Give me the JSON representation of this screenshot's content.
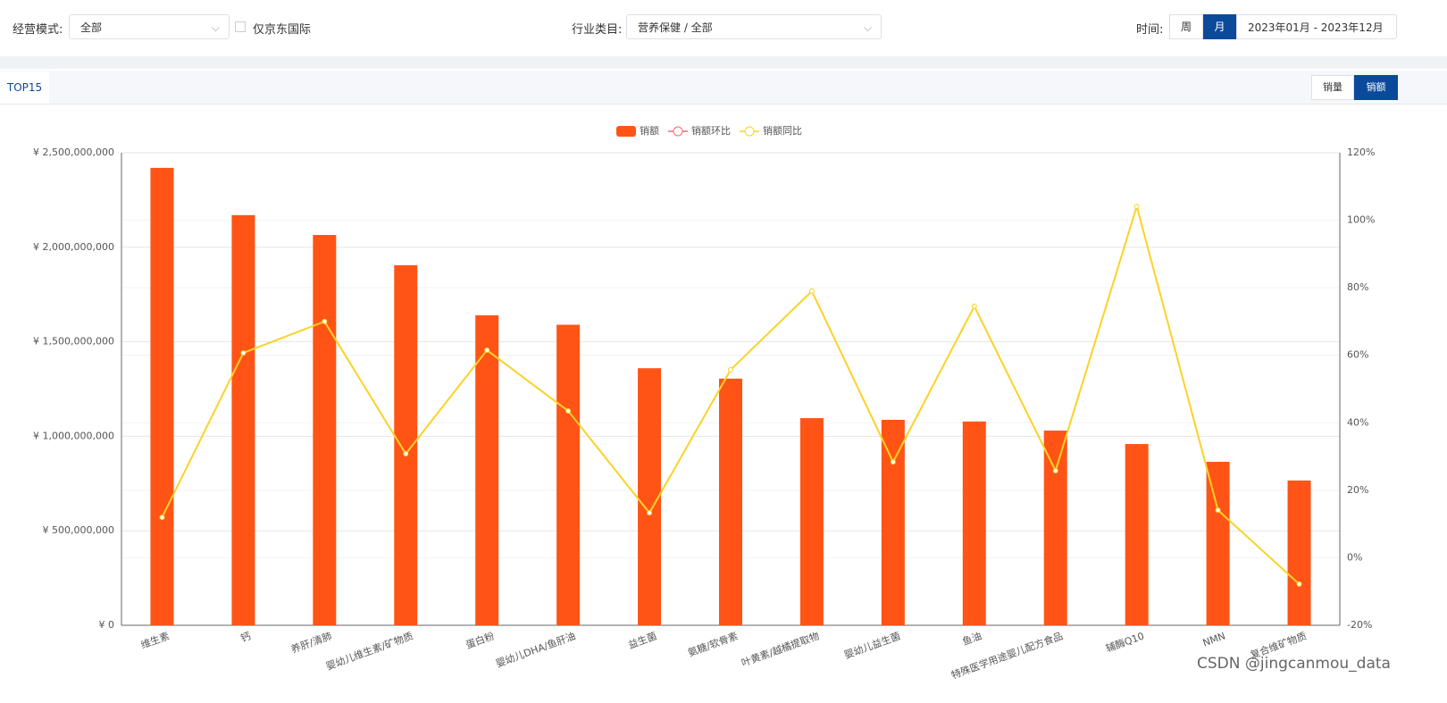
{
  "filters": {
    "mode_label": "经营模式:",
    "mode_value": "全部",
    "jd_intl": "仅京东国际",
    "category_label": "行业类目:",
    "category_value": "营养保健 / 全部",
    "time_label": "时间:",
    "week": "周",
    "month": "月",
    "range": "2023年01月 - 2023年12月"
  },
  "tabs": {
    "top": "TOP15",
    "volume": "销量",
    "amount": "销额"
  },
  "watermark": "CSDN @jingcanmou_data",
  "chart_data": {
    "type": "bar_line",
    "categories": [
      "维生素",
      "钙",
      "养肝/清肺",
      "婴幼儿维生素/矿物质",
      "蛋白粉",
      "婴幼儿DHA/鱼肝油",
      "益生菌",
      "氨糖/软骨素",
      "叶黄素/越橘提取物",
      "婴幼儿益生菌",
      "鱼油",
      "特殊医学用途婴儿配方食品",
      "辅酶Q10",
      "NMN",
      "复合维矿物质"
    ],
    "series": [
      {
        "name": "销额",
        "type": "bar",
        "color": "#ff5416",
        "values": [
          2420000000,
          2170000000,
          2065000000,
          1905000000,
          1640000000,
          1590000000,
          1360000000,
          1305000000,
          1096000000,
          1087000000,
          1078000000,
          1030000000,
          959000000,
          865000000,
          766000000
        ]
      },
      {
        "name": "销额环比",
        "type": "line",
        "axis": "y2",
        "color": "#f56c6c",
        "values": [
          null,
          null,
          null,
          null,
          null,
          null,
          null,
          null,
          null,
          null,
          null,
          null,
          null,
          null,
          null
        ]
      },
      {
        "name": "销额同比",
        "type": "line",
        "axis": "y2",
        "color": "#fcd227",
        "values": [
          12.0,
          60.7,
          70.0,
          30.8,
          61.5,
          43.5,
          13.3,
          55.7,
          79.0,
          28.4,
          74.5,
          25.8,
          104.1,
          14.1,
          -7.8
        ]
      }
    ],
    "ylim": [
      0,
      2500000000
    ],
    "yticks": [
      {
        "value": 0,
        "label": "¥ 0"
      },
      {
        "value": 500000000,
        "label": "¥ 500,000,000"
      },
      {
        "value": 1000000000,
        "label": "¥ 1,000,000,000"
      },
      {
        "value": 1500000000,
        "label": "¥ 1,500,000,000"
      },
      {
        "value": 2000000000,
        "label": "¥ 2,000,000,000"
      },
      {
        "value": 2500000000,
        "label": "¥ 2,500,000,000"
      }
    ],
    "y2lim": [
      -20,
      120
    ],
    "y2ticks": [
      {
        "value": -20,
        "label": "-20%"
      },
      {
        "value": 0,
        "label": "0%"
      },
      {
        "value": 20,
        "label": "20%"
      },
      {
        "value": 40,
        "label": "40%"
      },
      {
        "value": 60,
        "label": "60%"
      },
      {
        "value": 80,
        "label": "80%"
      },
      {
        "value": 100,
        "label": "100%"
      },
      {
        "value": 120,
        "label": "120%"
      }
    ],
    "grid": true,
    "legend": "top"
  }
}
